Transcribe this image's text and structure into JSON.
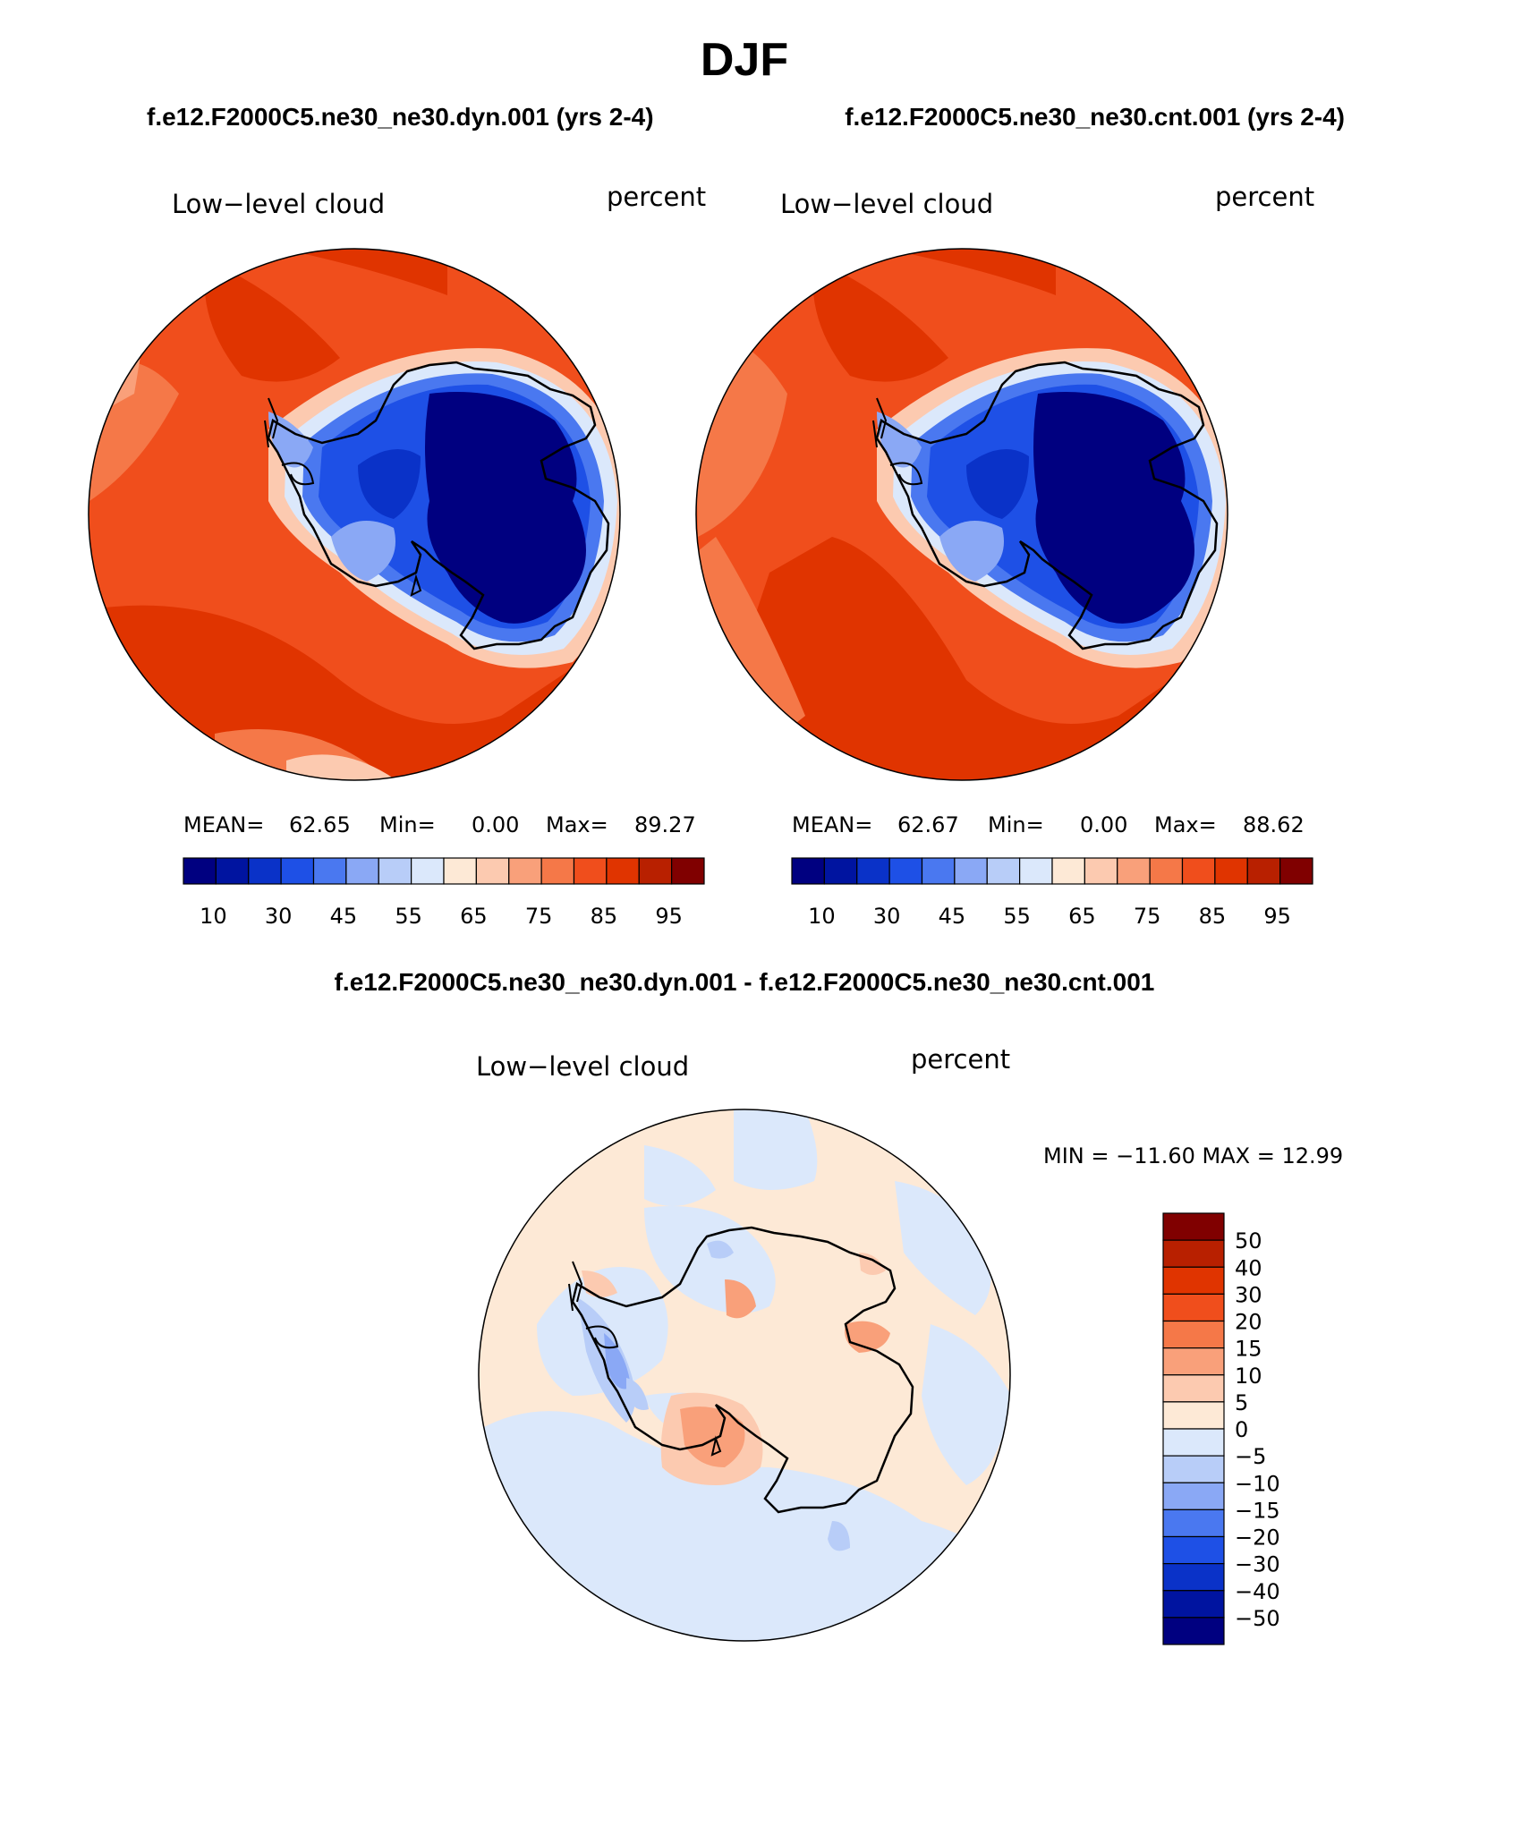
{
  "figure": {
    "title": "DJF",
    "subtitle_left": "f.e12.F2000C5.ne30_ne30.dyn.001 (yrs 2-4)",
    "subtitle_right": "f.e12.F2000C5.ne30_ne30.cnt.001 (yrs 2-4)",
    "diff_title": "f.e12.F2000C5.ne30_ne30.dyn.001 - f.e12.F2000C5.ne30_ne30.cnt.001"
  },
  "panels": [
    {
      "id": "dyn",
      "variable": "Low−level cloud",
      "units": "percent",
      "stats": {
        "mean_label": "MEAN=",
        "mean": "62.65",
        "min_label": "Min=",
        "min": "0.00",
        "max_label": "Max=",
        "max": "89.27"
      }
    },
    {
      "id": "cnt",
      "variable": "Low−level cloud",
      "units": "percent",
      "stats": {
        "mean_label": "MEAN=",
        "mean": "62.67",
        "min_label": "Min=",
        "min": "0.00",
        "max_label": "Max=",
        "max": "88.62"
      }
    },
    {
      "id": "diff",
      "variable": "Low−level cloud",
      "units": "percent",
      "stats_text": "MIN = −11.60 MAX =   12.99"
    }
  ],
  "colorbar_abs": {
    "labels": [
      "10",
      "30",
      "45",
      "55",
      "65",
      "75",
      "85",
      "95"
    ],
    "colors": [
      "#000080",
      "#0014a0",
      "#0a32c8",
      "#1e50e6",
      "#4a78f0",
      "#8aa8f5",
      "#b8cdf8",
      "#dbe8fb",
      "#fde9d6",
      "#fccab0",
      "#f9a07a",
      "#f57848",
      "#f04e1c",
      "#e03400",
      "#b82000",
      "#800000"
    ]
  },
  "colorbar_diff": {
    "labels": [
      "50",
      "40",
      "30",
      "20",
      "15",
      "10",
      "5",
      "0",
      "−5",
      "−10",
      "−15",
      "−20",
      "−30",
      "−40",
      "−50"
    ],
    "colors": [
      "#800000",
      "#b82000",
      "#e03400",
      "#f04e1c",
      "#f57848",
      "#f9a07a",
      "#fccab0",
      "#fde9d6",
      "#dbe8fb",
      "#b8cdf8",
      "#8aa8f5",
      "#4a78f0",
      "#1e50e6",
      "#0a32c8",
      "#0014a0",
      "#000080"
    ]
  }
}
